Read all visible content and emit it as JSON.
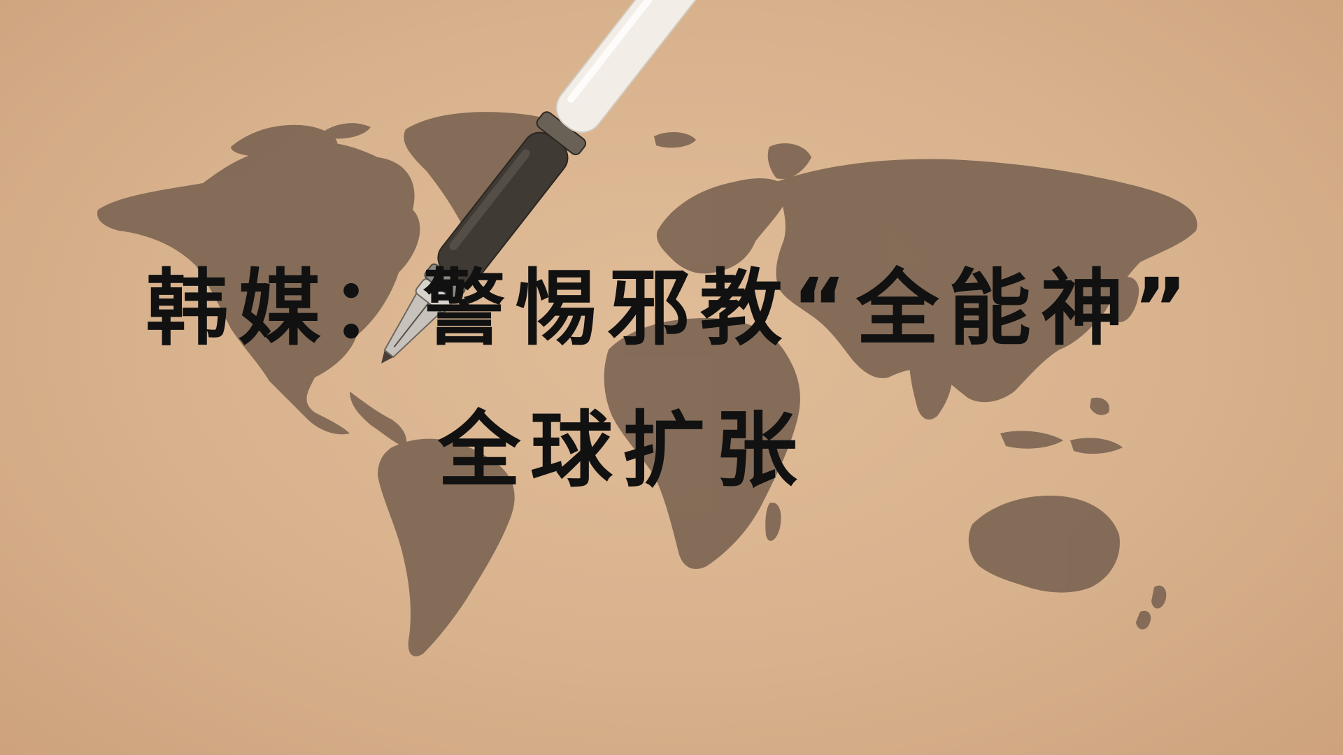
{
  "title": {
    "line1": "韩媒：警惕邪教“全能神”",
    "line2": "全球扩张"
  },
  "colors": {
    "background": "#d8b28d",
    "map": "#7d6654",
    "text": "#111111"
  },
  "icons": {
    "world_map": "world-map-silhouette",
    "pen": "fountain-pen"
  }
}
